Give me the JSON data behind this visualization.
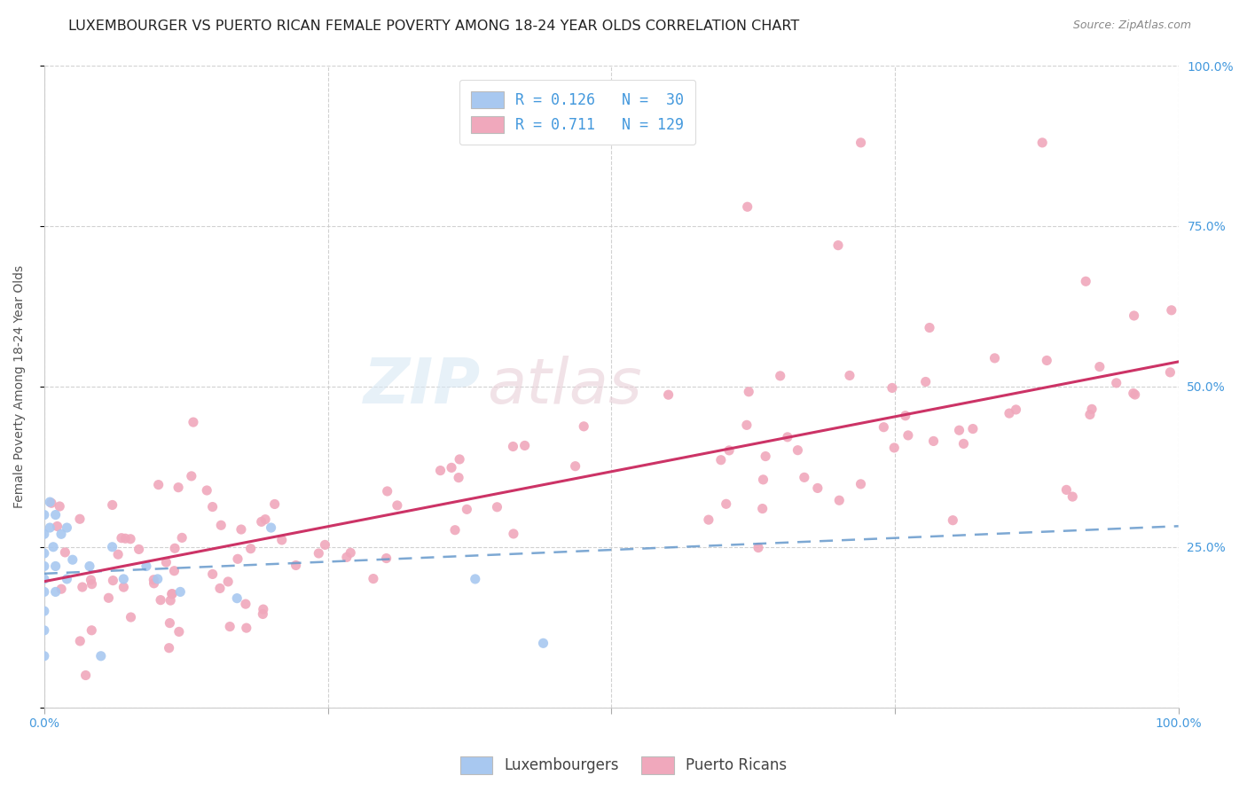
{
  "title": "LUXEMBOURGER VS PUERTO RICAN FEMALE POVERTY AMONG 18-24 YEAR OLDS CORRELATION CHART",
  "source": "Source: ZipAtlas.com",
  "ylabel": "Female Poverty Among 18-24 Year Olds",
  "xlim": [
    0,
    1
  ],
  "ylim": [
    0,
    1
  ],
  "watermark_zip": "ZIP",
  "watermark_atlas": "atlas",
  "lux_color": "#a8c8f0",
  "pr_color": "#f0a8bc",
  "lux_line_color": "#6699cc",
  "pr_line_color": "#cc3366",
  "lux_R": 0.126,
  "lux_N": 30,
  "pr_R": 0.711,
  "pr_N": 129,
  "background_color": "#ffffff",
  "grid_color": "#cccccc",
  "tick_color": "#4499dd",
  "title_fontsize": 11.5,
  "label_fontsize": 10,
  "tick_fontsize": 10,
  "legend_fontsize": 12
}
